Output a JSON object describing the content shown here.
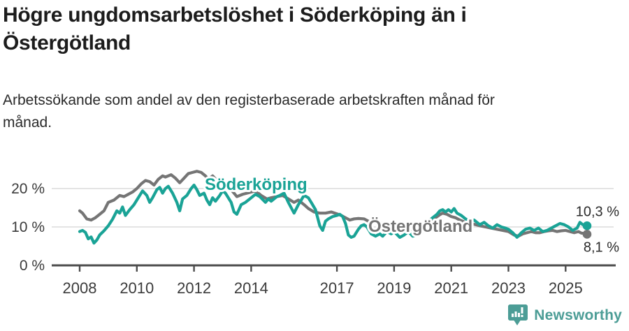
{
  "header": {
    "title": "Högre ungdomsarbetslöshet i Söderköping än i\nÖstergötland",
    "subtitle": "Arbetssökande som andel av den registerbaserade arbetskraften månad för\nmånad."
  },
  "footer": {
    "brand": "Newsworthy",
    "logo_icon": "bar-chart-pin-icon"
  },
  "colors": {
    "soderkoping_teal": "#1aa396",
    "ostergotland_gray": "#757575",
    "grid": "#dcdcdc",
    "axis": "#4b4b4b",
    "tick_text": "#3b3b3b",
    "end_label_text": "#2b2b2b",
    "brand_teal": "#4c9d96",
    "title_text": "#1c1c1c"
  },
  "chart_data": {
    "type": "line",
    "x_axis": {
      "tick_labels": [
        "2008",
        "2010",
        "2012",
        "2014",
        "2017",
        "2019",
        "2021",
        "2023",
        "2025"
      ],
      "tick_values": [
        2008,
        2010,
        2012,
        2014,
        2017,
        2019,
        2021,
        2023,
        2025
      ],
      "range": [
        2008,
        2025.75
      ]
    },
    "y_axis": {
      "tick_labels": [
        "0 %",
        "10 %",
        "20 %"
      ],
      "tick_values": [
        0,
        10,
        20
      ],
      "range": [
        0,
        26
      ],
      "unit": "%"
    },
    "grid": "horizontal",
    "legend_position": "inline-labels",
    "series": [
      {
        "name": "Söderköping",
        "color": "#1aa396",
        "end_label": "10,3 %",
        "end_value": 10.3,
        "points": [
          [
            2008.0,
            8.8
          ],
          [
            2008.1,
            9.1
          ],
          [
            2008.2,
            8.6
          ],
          [
            2008.3,
            6.9
          ],
          [
            2008.4,
            7.4
          ],
          [
            2008.5,
            5.8
          ],
          [
            2008.6,
            6.6
          ],
          [
            2008.7,
            7.9
          ],
          [
            2008.85,
            9.0
          ],
          [
            2009.0,
            10.3
          ],
          [
            2009.15,
            12.0
          ],
          [
            2009.3,
            14.2
          ],
          [
            2009.4,
            13.6
          ],
          [
            2009.5,
            15.2
          ],
          [
            2009.6,
            13.0
          ],
          [
            2009.75,
            14.5
          ],
          [
            2009.9,
            15.8
          ],
          [
            2010.0,
            17.0
          ],
          [
            2010.2,
            19.4
          ],
          [
            2010.35,
            18.2
          ],
          [
            2010.45,
            16.4
          ],
          [
            2010.55,
            17.6
          ],
          [
            2010.7,
            19.7
          ],
          [
            2010.8,
            20.3
          ],
          [
            2010.9,
            18.8
          ],
          [
            2011.0,
            20.0
          ],
          [
            2011.1,
            20.6
          ],
          [
            2011.25,
            18.8
          ],
          [
            2011.4,
            16.4
          ],
          [
            2011.5,
            14.2
          ],
          [
            2011.6,
            17.3
          ],
          [
            2011.75,
            18.2
          ],
          [
            2011.9,
            20.0
          ],
          [
            2012.0,
            20.9
          ],
          [
            2012.1,
            19.7
          ],
          [
            2012.2,
            18.2
          ],
          [
            2012.35,
            18.8
          ],
          [
            2012.45,
            17.0
          ],
          [
            2012.55,
            15.8
          ],
          [
            2012.65,
            17.6
          ],
          [
            2012.75,
            16.7
          ],
          [
            2012.9,
            18.2
          ],
          [
            2013.0,
            19.4
          ],
          [
            2013.1,
            18.8
          ],
          [
            2013.3,
            16.4
          ],
          [
            2013.4,
            13.9
          ],
          [
            2013.5,
            13.3
          ],
          [
            2013.65,
            15.8
          ],
          [
            2013.8,
            16.4
          ],
          [
            2014.0,
            17.6
          ],
          [
            2014.15,
            18.5
          ],
          [
            2014.3,
            17.9
          ],
          [
            2014.5,
            16.4
          ],
          [
            2014.6,
            17.3
          ],
          [
            2014.7,
            16.7
          ],
          [
            2014.9,
            17.9
          ],
          [
            2015.0,
            18.2
          ],
          [
            2015.15,
            18.8
          ],
          [
            2015.3,
            16.4
          ],
          [
            2015.5,
            13.6
          ],
          [
            2015.65,
            15.8
          ],
          [
            2015.75,
            17.0
          ],
          [
            2015.85,
            18.2
          ],
          [
            2016.0,
            17.6
          ],
          [
            2016.1,
            16.4
          ],
          [
            2016.25,
            14.5
          ],
          [
            2016.4,
            10.3
          ],
          [
            2016.5,
            9.1
          ],
          [
            2016.6,
            11.5
          ],
          [
            2016.7,
            12.1
          ],
          [
            2016.85,
            12.7
          ],
          [
            2017.0,
            13.0
          ],
          [
            2017.1,
            13.3
          ],
          [
            2017.2,
            12.7
          ],
          [
            2017.3,
            10.9
          ],
          [
            2017.4,
            7.9
          ],
          [
            2017.5,
            7.3
          ],
          [
            2017.6,
            7.6
          ],
          [
            2017.75,
            9.4
          ],
          [
            2017.85,
            10.3
          ],
          [
            2017.95,
            10.6
          ],
          [
            2018.05,
            10.0
          ],
          [
            2018.2,
            8.2
          ],
          [
            2018.35,
            7.6
          ],
          [
            2018.5,
            8.2
          ],
          [
            2018.6,
            7.6
          ],
          [
            2018.75,
            8.8
          ],
          [
            2018.9,
            8.2
          ],
          [
            2019.0,
            8.8
          ],
          [
            2019.2,
            7.3
          ],
          [
            2019.35,
            7.9
          ],
          [
            2019.5,
            8.8
          ],
          [
            2019.65,
            7.6
          ],
          [
            2019.8,
            7.9
          ],
          [
            2019.95,
            8.5
          ],
          [
            2020.1,
            9.7
          ],
          [
            2020.2,
            11.5
          ],
          [
            2020.35,
            12.4
          ],
          [
            2020.5,
            13.3
          ],
          [
            2020.6,
            14.2
          ],
          [
            2020.7,
            14.5
          ],
          [
            2020.8,
            13.9
          ],
          [
            2020.9,
            14.5
          ],
          [
            2021.0,
            13.9
          ],
          [
            2021.1,
            14.8
          ],
          [
            2021.2,
            13.6
          ],
          [
            2021.35,
            13.0
          ],
          [
            2021.5,
            12.1
          ],
          [
            2021.65,
            11.5
          ],
          [
            2021.8,
            11.8
          ],
          [
            2022.0,
            10.6
          ],
          [
            2022.15,
            11.2
          ],
          [
            2022.3,
            10.3
          ],
          [
            2022.45,
            9.7
          ],
          [
            2022.6,
            10.6
          ],
          [
            2022.75,
            10.0
          ],
          [
            2022.9,
            9.7
          ],
          [
            2023.0,
            9.4
          ],
          [
            2023.15,
            8.5
          ],
          [
            2023.3,
            7.3
          ],
          [
            2023.45,
            8.5
          ],
          [
            2023.6,
            9.4
          ],
          [
            2023.75,
            9.7
          ],
          [
            2023.9,
            9.1
          ],
          [
            2024.05,
            9.7
          ],
          [
            2024.2,
            8.8
          ],
          [
            2024.35,
            9.1
          ],
          [
            2024.5,
            9.7
          ],
          [
            2024.65,
            10.3
          ],
          [
            2024.8,
            10.9
          ],
          [
            2024.95,
            10.6
          ],
          [
            2025.1,
            10.0
          ],
          [
            2025.25,
            9.1
          ],
          [
            2025.4,
            9.7
          ],
          [
            2025.5,
            11.2
          ],
          [
            2025.6,
            10.6
          ],
          [
            2025.75,
            10.3
          ]
        ]
      },
      {
        "name": "Östergötland",
        "color": "#757575",
        "end_label": "8,1 %",
        "end_value": 8.1,
        "points": [
          [
            2008.0,
            14.2
          ],
          [
            2008.1,
            13.6
          ],
          [
            2008.25,
            12.1
          ],
          [
            2008.4,
            11.8
          ],
          [
            2008.55,
            12.4
          ],
          [
            2008.7,
            13.3
          ],
          [
            2008.85,
            14.2
          ],
          [
            2009.0,
            16.4
          ],
          [
            2009.2,
            17.0
          ],
          [
            2009.4,
            18.2
          ],
          [
            2009.55,
            17.9
          ],
          [
            2009.7,
            18.5
          ],
          [
            2009.85,
            19.1
          ],
          [
            2010.0,
            20.0
          ],
          [
            2010.15,
            21.2
          ],
          [
            2010.3,
            22.1
          ],
          [
            2010.45,
            21.8
          ],
          [
            2010.6,
            20.9
          ],
          [
            2010.75,
            22.4
          ],
          [
            2010.9,
            23.3
          ],
          [
            2011.0,
            23.0
          ],
          [
            2011.2,
            23.6
          ],
          [
            2011.35,
            22.7
          ],
          [
            2011.5,
            21.5
          ],
          [
            2011.65,
            22.7
          ],
          [
            2011.8,
            23.9
          ],
          [
            2011.95,
            24.2
          ],
          [
            2012.1,
            24.5
          ],
          [
            2012.25,
            24.2
          ],
          [
            2012.4,
            23.3
          ],
          [
            2012.5,
            22.4
          ],
          [
            2012.65,
            23.3
          ],
          [
            2012.8,
            22.1
          ],
          [
            2013.0,
            20.6
          ],
          [
            2013.15,
            21.2
          ],
          [
            2013.3,
            19.7
          ],
          [
            2013.5,
            17.9
          ],
          [
            2013.7,
            18.5
          ],
          [
            2013.85,
            18.8
          ],
          [
            2014.0,
            19.1
          ],
          [
            2014.15,
            19.4
          ],
          [
            2014.35,
            18.2
          ],
          [
            2014.55,
            17.3
          ],
          [
            2014.7,
            17.6
          ],
          [
            2014.9,
            17.9
          ],
          [
            2015.1,
            18.2
          ],
          [
            2015.3,
            17.3
          ],
          [
            2015.5,
            16.4
          ],
          [
            2015.65,
            17.0
          ],
          [
            2015.85,
            15.8
          ],
          [
            2016.0,
            14.8
          ],
          [
            2016.2,
            13.9
          ],
          [
            2016.4,
            13.6
          ],
          [
            2016.6,
            13.6
          ],
          [
            2016.8,
            13.9
          ],
          [
            2017.0,
            13.4
          ],
          [
            2017.15,
            13.0
          ],
          [
            2017.3,
            12.4
          ],
          [
            2017.45,
            11.8
          ],
          [
            2017.6,
            12.1
          ],
          [
            2017.75,
            12.2
          ],
          [
            2017.95,
            12.1
          ],
          [
            2018.1,
            11.5
          ],
          [
            2018.3,
            11.2
          ],
          [
            2018.5,
            11.0
          ],
          [
            2018.7,
            10.9
          ],
          [
            2018.9,
            10.6
          ],
          [
            2019.1,
            10.2
          ],
          [
            2019.3,
            10.0
          ],
          [
            2019.5,
            9.5
          ],
          [
            2019.7,
            9.2
          ],
          [
            2019.85,
            9.0
          ],
          [
            2020.0,
            9.1
          ],
          [
            2020.15,
            10.0
          ],
          [
            2020.3,
            11.5
          ],
          [
            2020.45,
            12.4
          ],
          [
            2020.6,
            13.2
          ],
          [
            2020.7,
            13.6
          ],
          [
            2020.85,
            13.3
          ],
          [
            2021.0,
            12.7
          ],
          [
            2021.15,
            12.4
          ],
          [
            2021.3,
            11.8
          ],
          [
            2021.5,
            11.2
          ],
          [
            2021.7,
            10.9
          ],
          [
            2021.85,
            10.6
          ],
          [
            2022.0,
            10.3
          ],
          [
            2022.2,
            10.0
          ],
          [
            2022.4,
            9.7
          ],
          [
            2022.6,
            9.4
          ],
          [
            2022.8,
            9.1
          ],
          [
            2023.0,
            8.8
          ],
          [
            2023.2,
            7.9
          ],
          [
            2023.35,
            7.6
          ],
          [
            2023.5,
            8.2
          ],
          [
            2023.65,
            8.5
          ],
          [
            2023.8,
            8.8
          ],
          [
            2023.95,
            8.5
          ],
          [
            2024.1,
            8.5
          ],
          [
            2024.25,
            8.8
          ],
          [
            2024.4,
            9.0
          ],
          [
            2024.55,
            9.1
          ],
          [
            2024.7,
            8.8
          ],
          [
            2024.85,
            9.0
          ],
          [
            2025.0,
            9.1
          ],
          [
            2025.15,
            8.8
          ],
          [
            2025.3,
            8.5
          ],
          [
            2025.45,
            8.8
          ],
          [
            2025.55,
            8.4
          ],
          [
            2025.65,
            8.3
          ],
          [
            2025.75,
            8.1
          ]
        ]
      }
    ]
  }
}
